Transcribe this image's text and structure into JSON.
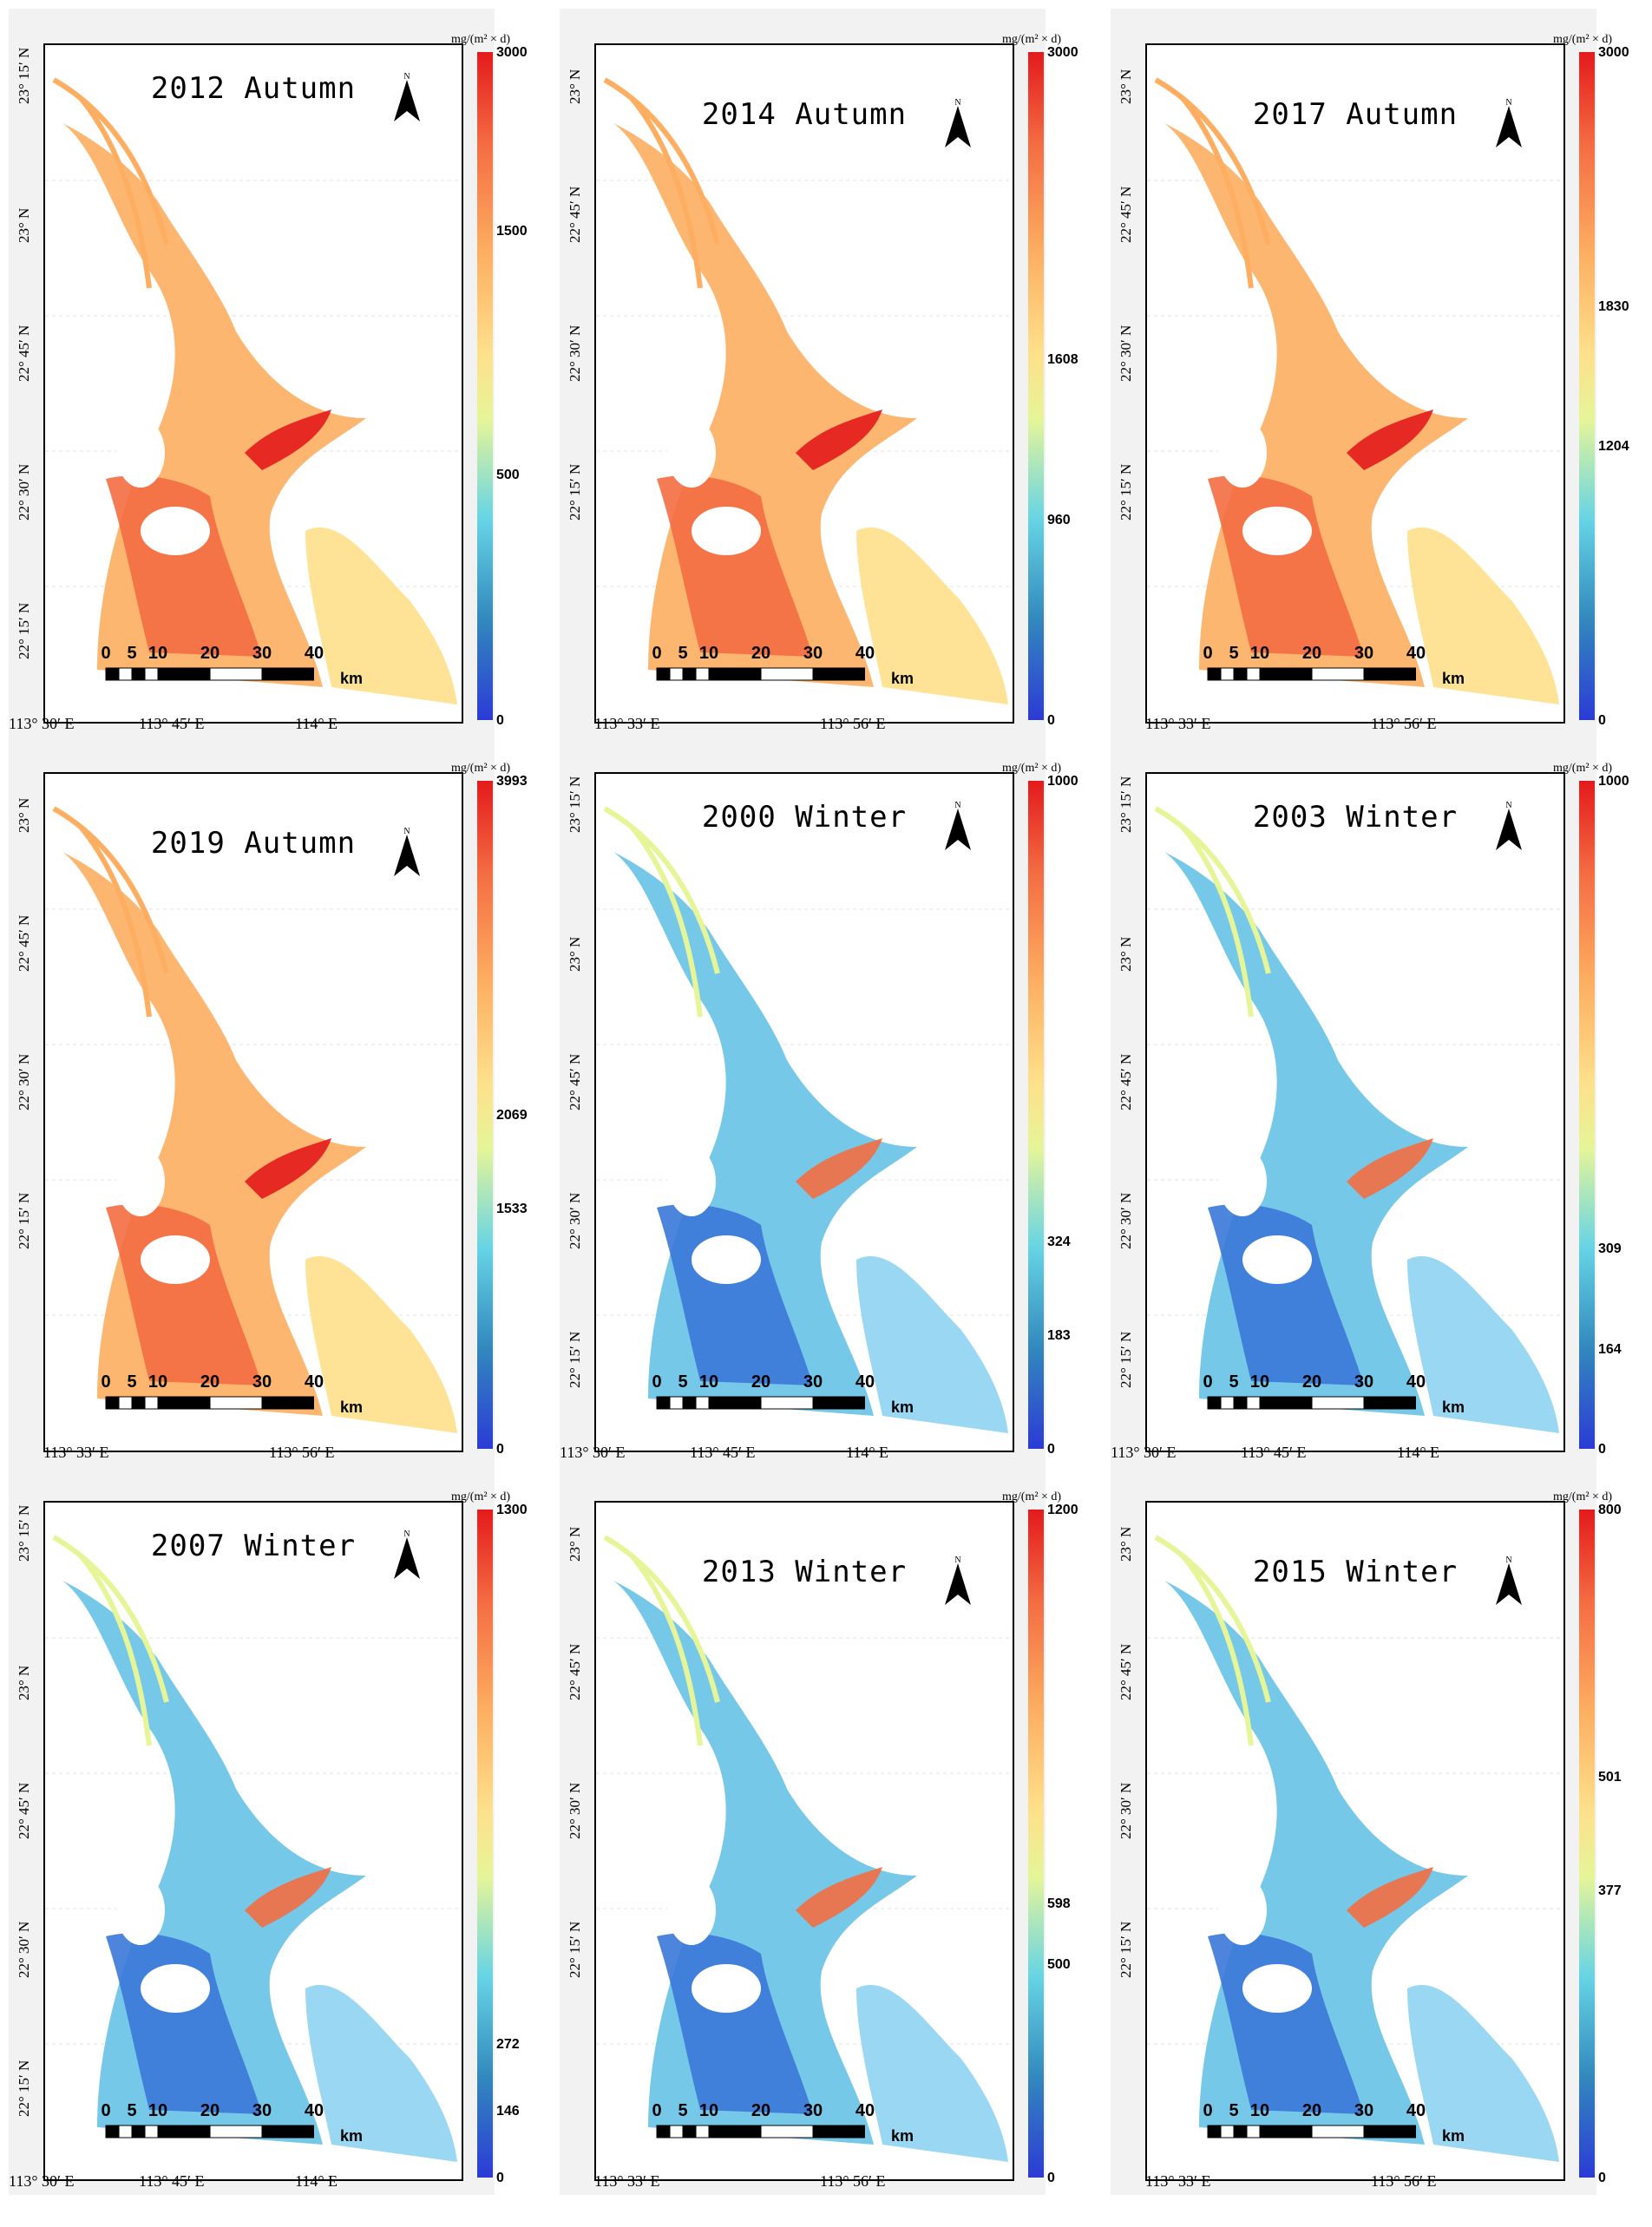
{
  "colorbar_unit": "mg/(m² × d)",
  "scale_labels": [
    "0",
    "5",
    "10",
    "20",
    "30",
    "40"
  ],
  "scale_unit": "km",
  "north_symbol": "north-arrow",
  "colors": {
    "high": "#e41a1c",
    "mid": "#fee08b",
    "low": "#2b3bd6",
    "water_mid": "#66d4e5"
  },
  "panels": [
    {
      "title": "2012 Autumn",
      "lat": [
        "23° 15′ N",
        "23° N",
        "22° 45′ N",
        "22° 30′ N",
        "22° 15′ N"
      ],
      "lon": [
        "113° 30′ E",
        "113° 45′ E",
        "114° E"
      ],
      "ticks": [
        {
          "label": "3000"
        },
        {
          "label": "1500"
        },
        {
          "label": "500"
        },
        {
          "label": "0"
        }
      ],
      "levels": [
        1,
        0.733,
        0.367,
        0
      ]
    },
    {
      "title": "2014 Autumn",
      "lat": [
        "23° N",
        "22° 45′ N",
        "22° 30′ N",
        "22° 15′ N"
      ],
      "lon": [
        "113° 33′ E",
        "113° 56′ E"
      ],
      "ticks": [
        {
          "label": "3000"
        },
        {
          "label": "1608"
        },
        {
          "label": "960"
        },
        {
          "label": "0"
        }
      ],
      "levels": [
        1,
        0.54,
        0.3,
        0
      ]
    },
    {
      "title": "2017 Autumn",
      "lat": [
        "23° N",
        "22° 45′ N",
        "22° 30′ N",
        "22° 15′ N"
      ],
      "lon": [
        "113° 33′ E",
        "113° 56′ E"
      ],
      "ticks": [
        {
          "label": "3000"
        },
        {
          "label": "1830"
        },
        {
          "label": "1204"
        },
        {
          "label": "0"
        }
      ],
      "levels": [
        1,
        0.62,
        0.41,
        0
      ]
    },
    {
      "title": "2019 Autumn",
      "lat": [
        "23° N",
        "22° 45′ N",
        "22° 30′ N",
        "22° 15′ N"
      ],
      "lon": [
        "113° 33′ E",
        "113° 56′ E"
      ],
      "ticks": [
        {
          "label": "3993"
        },
        {
          "label": "2069"
        },
        {
          "label": "1533"
        },
        {
          "label": "0"
        }
      ],
      "levels": [
        1,
        0.5,
        0.36,
        0
      ]
    },
    {
      "title": "2000 Winter",
      "lat": [
        "23° 15′ N",
        "23° N",
        "22° 45′ N",
        "22° 30′ N",
        "22° 15′ N"
      ],
      "lon": [
        "113° 30′ E",
        "113° 45′ E",
        "114° E"
      ],
      "ticks": [
        {
          "label": "1000"
        },
        {
          "label": "324"
        },
        {
          "label": "183"
        },
        {
          "label": "0"
        }
      ],
      "levels": [
        1,
        0.31,
        0.17,
        0
      ]
    },
    {
      "title": "2003 Winter",
      "lat": [
        "23° 15′ N",
        "23° N",
        "22° 45′ N",
        "22° 30′ N",
        "22° 15′ N"
      ],
      "lon": [
        "113° 30′ E",
        "113° 45′ E",
        "114° E"
      ],
      "ticks": [
        {
          "label": "1000"
        },
        {
          "label": "309"
        },
        {
          "label": "164"
        },
        {
          "label": "0"
        }
      ],
      "levels": [
        1,
        0.3,
        0.15,
        0
      ]
    },
    {
      "title": "2007 Winter",
      "lat": [
        "23° 15′ N",
        "23° N",
        "22° 45′ N",
        "22° 30′ N",
        "22° 15′ N"
      ],
      "lon": [
        "113° 30′ E",
        "113° 45′ E",
        "114° E"
      ],
      "ticks": [
        {
          "label": "1300"
        },
        {
          "label": "272"
        },
        {
          "label": "146"
        },
        {
          "label": "0"
        }
      ],
      "levels": [
        1,
        0.2,
        0.1,
        0
      ]
    },
    {
      "title": "2013 Winter",
      "lat": [
        "23° N",
        "22° 45′ N",
        "22° 30′ N",
        "22° 15′ N"
      ],
      "lon": [
        "113° 33′ E",
        "113° 56′ E"
      ],
      "ticks": [
        {
          "label": "1200"
        },
        {
          "label": "598"
        },
        {
          "label": "500"
        },
        {
          "label": "0"
        }
      ],
      "levels": [
        1,
        0.41,
        0.32,
        0
      ]
    },
    {
      "title": "2015 Winter",
      "lat": [
        "23° N",
        "22° 45′ N",
        "22° 30′ N",
        "22° 15′ N"
      ],
      "lon": [
        "113° 33′ E",
        "113° 56′ E"
      ],
      "ticks": [
        {
          "label": "800"
        },
        {
          "label": "501"
        },
        {
          "label": "377"
        },
        {
          "label": "0"
        }
      ],
      "levels": [
        1,
        0.6,
        0.43,
        0
      ]
    }
  ]
}
